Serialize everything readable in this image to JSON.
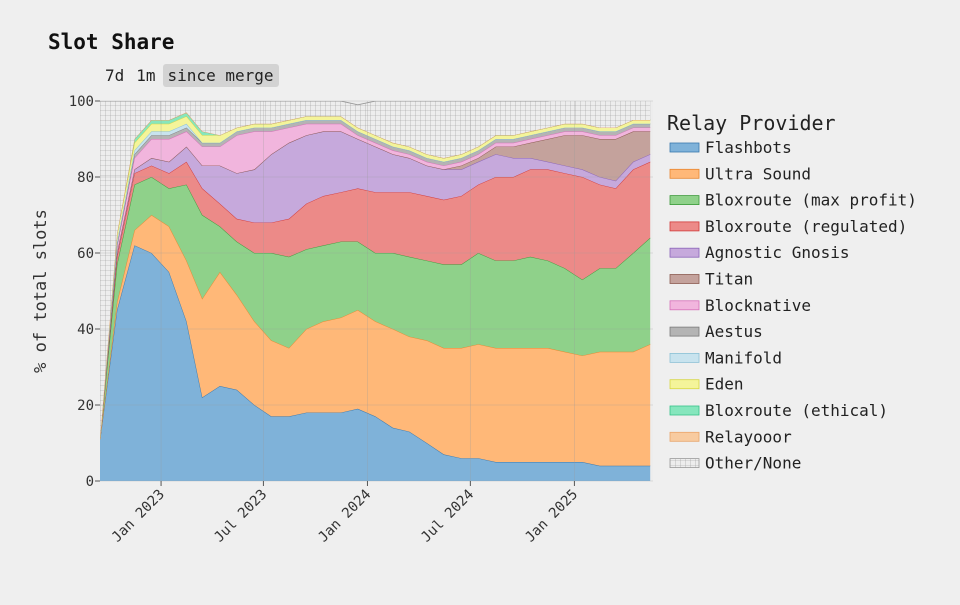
{
  "header": {
    "title": "Slot Share"
  },
  "range_tabs": [
    {
      "label": "7d",
      "active": false
    },
    {
      "label": "1m",
      "active": false
    },
    {
      "label": "since merge",
      "active": true
    }
  ],
  "chart_data": {
    "type": "area",
    "stacked": true,
    "ylabel": "% of total slots",
    "ylim": [
      0,
      100
    ],
    "yticks": [
      0,
      20,
      40,
      60,
      80,
      100
    ],
    "x_range": [
      "2022-09-15",
      "2025-05-20"
    ],
    "xticks": [
      "Jan 2023",
      "Jul 2023",
      "Jan 2024",
      "Jul 2024",
      "Jan 2025"
    ],
    "xtick_dates": [
      "2023-01-01",
      "2023-07-01",
      "2024-01-01",
      "2024-07-01",
      "2025-01-01"
    ],
    "legend_title": "Relay Provider",
    "legend_position": "right",
    "x": [
      "2022-09-15",
      "2022-10-15",
      "2022-11-15",
      "2022-12-15",
      "2023-01-15",
      "2023-02-15",
      "2023-03-15",
      "2023-04-15",
      "2023-05-15",
      "2023-06-15",
      "2023-07-15",
      "2023-08-15",
      "2023-09-15",
      "2023-10-15",
      "2023-11-15",
      "2023-12-15",
      "2024-01-15",
      "2024-02-15",
      "2024-03-15",
      "2024-04-15",
      "2024-05-15",
      "2024-06-15",
      "2024-07-15",
      "2024-08-15",
      "2024-09-15",
      "2024-10-15",
      "2024-11-15",
      "2024-12-15",
      "2025-01-15",
      "2025-02-15",
      "2025-03-15",
      "2025-04-15",
      "2025-05-15"
    ],
    "series": [
      {
        "name": "Flashbots",
        "color": "#7fb2d9",
        "line": "#3a78ad",
        "values": [
          11,
          45,
          62,
          60,
          55,
          42,
          22,
          25,
          24,
          20,
          17,
          17,
          18,
          18,
          18,
          19,
          17,
          14,
          13,
          10,
          7,
          6,
          6,
          5,
          5,
          5,
          5,
          5,
          5,
          4,
          4,
          4,
          4
        ]
      },
      {
        "name": "Ultra Sound",
        "color": "#ffb878",
        "line": "#e8862e",
        "values": [
          0,
          2,
          4,
          10,
          12,
          16,
          26,
          30,
          25,
          22,
          20,
          18,
          22,
          24,
          25,
          26,
          25,
          26,
          25,
          27,
          28,
          29,
          30,
          30,
          30,
          30,
          30,
          29,
          28,
          30,
          30,
          30,
          32
        ]
      },
      {
        "name": "Bloxroute (max profit)",
        "color": "#8fd18a",
        "line": "#3c9a3a",
        "values": [
          0,
          10,
          12,
          10,
          10,
          20,
          22,
          12,
          14,
          18,
          23,
          24,
          21,
          20,
          20,
          18,
          18,
          20,
          21,
          21,
          22,
          22,
          24,
          23,
          23,
          24,
          23,
          22,
          20,
          22,
          22,
          26,
          28
        ]
      },
      {
        "name": "Bloxroute (regulated)",
        "color": "#ec8a88",
        "line": "#d13a3a",
        "values": [
          0,
          2,
          3,
          3,
          4,
          6,
          7,
          6,
          6,
          8,
          8,
          10,
          12,
          13,
          13,
          14,
          16,
          16,
          17,
          17,
          17,
          18,
          18,
          22,
          22,
          23,
          24,
          25,
          27,
          22,
          21,
          22,
          20
        ]
      },
      {
        "name": "Agnostic Gnosis",
        "color": "#c6a9dc",
        "line": "#8a63b8",
        "values": [
          0,
          1,
          1,
          2,
          3,
          4,
          6,
          10,
          12,
          14,
          18,
          20,
          18,
          17,
          16,
          13,
          12,
          10,
          9,
          8,
          8,
          7,
          6,
          6,
          5,
          3,
          2,
          2,
          2,
          2,
          2,
          2,
          2
        ]
      },
      {
        "name": "Titan",
        "color": "#c4a29c",
        "line": "#8c5c52",
        "values": [
          0,
          0,
          0,
          0,
          0,
          0,
          0,
          0,
          0,
          0,
          0,
          0,
          0,
          0,
          0,
          0,
          0,
          0,
          0,
          0,
          0,
          1,
          1,
          2,
          3,
          4,
          6,
          8,
          9,
          10,
          11,
          8,
          6
        ]
      },
      {
        "name": "Blocknative",
        "color": "#f1b5dd",
        "line": "#d670b8",
        "values": [
          0,
          2,
          3,
          5,
          6,
          4,
          5,
          5,
          10,
          10,
          6,
          4,
          3,
          2,
          2,
          1,
          1,
          1,
          1,
          1,
          1,
          1,
          1,
          1,
          1,
          1,
          1,
          1,
          1,
          1,
          1,
          1,
          1
        ]
      },
      {
        "name": "Aestus",
        "color": "#b4b4b4",
        "line": "#7a7a7a",
        "values": [
          0,
          0,
          1,
          1,
          1,
          1,
          1,
          1,
          1,
          1,
          1,
          1,
          1,
          1,
          1,
          1,
          1,
          1,
          1,
          1,
          1,
          1,
          1,
          1,
          1,
          1,
          1,
          1,
          1,
          1,
          1,
          1,
          1
        ]
      },
      {
        "name": "Manifold",
        "color": "#c8e3ee",
        "line": "#8cc1d6",
        "values": [
          0,
          1,
          1,
          1,
          1,
          1,
          0,
          0,
          0,
          0,
          0,
          0,
          0,
          0,
          0,
          0,
          0,
          0,
          0,
          0,
          0,
          0,
          0,
          0,
          0,
          0,
          0,
          0,
          0,
          0,
          0,
          0,
          0
        ]
      },
      {
        "name": "Eden",
        "color": "#f4f49a",
        "line": "#d7d744",
        "values": [
          0,
          2,
          2,
          2,
          2,
          2,
          2,
          2,
          1,
          1,
          1,
          1,
          1,
          1,
          1,
          1,
          1,
          1,
          1,
          1,
          1,
          1,
          1,
          1,
          1,
          1,
          1,
          1,
          1,
          1,
          1,
          1,
          1
        ]
      },
      {
        "name": "Bloxroute (ethical)",
        "color": "#86e6bd",
        "line": "#36c28a",
        "values": [
          0,
          0,
          1,
          1,
          1,
          1,
          1,
          0,
          0,
          0,
          0,
          0,
          0,
          0,
          0,
          0,
          0,
          0,
          0,
          0,
          0,
          0,
          0,
          0,
          0,
          0,
          0,
          0,
          0,
          0,
          0,
          0,
          0
        ]
      },
      {
        "name": "Relayooor",
        "color": "#f8cba0",
        "line": "#e9a56b",
        "values": [
          0,
          0,
          0,
          0,
          0,
          0,
          0,
          0,
          0,
          0,
          0,
          0,
          0,
          0,
          0,
          0,
          0,
          0,
          0,
          0,
          0,
          0,
          0,
          0,
          0,
          0,
          0,
          0,
          0,
          0,
          0,
          0,
          0
        ]
      },
      {
        "name": "Other/None",
        "color": "#ececec",
        "line": "#9a9a9a",
        "pattern": "grid",
        "values": [
          89,
          35,
          10,
          5,
          5,
          3,
          8,
          9,
          7,
          6,
          6,
          5,
          4,
          4,
          4,
          6,
          9,
          11,
          12,
          14,
          15,
          14,
          12,
          9,
          9,
          8,
          7,
          7,
          7,
          8,
          8,
          6,
          6
        ]
      }
    ]
  }
}
